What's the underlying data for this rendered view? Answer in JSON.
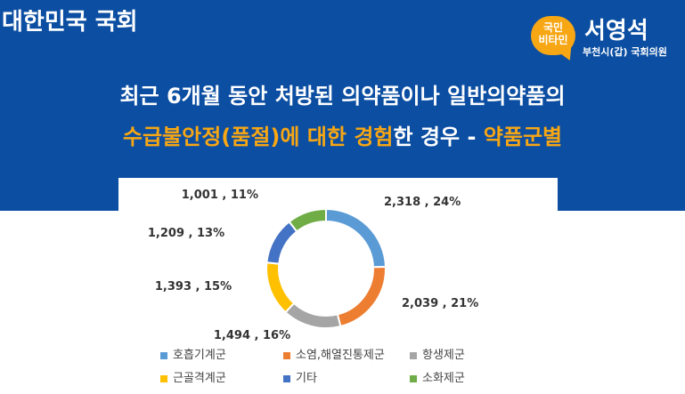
{
  "header": {
    "org_name": "대한민국 국회",
    "badge_line1": "국민",
    "badge_line2": "비타민",
    "member_name": "서영석",
    "member_district": "부천시(갑) 국회의원"
  },
  "title": {
    "line1": "최근 6개월 동안 처방된 의약품이나 일반의약품의",
    "line2_part1": "수급불안정(품절)에 대한 경험",
    "line2_part2": "한 경우 - ",
    "line2_part3": "약품군별"
  },
  "colors": {
    "banner": "#0b4ea2",
    "accent": "#f7a614"
  },
  "chart_data": {
    "type": "pie",
    "style": "donut",
    "slices": [
      {
        "label": "호흡기계군",
        "value": 2318,
        "percent": 24,
        "color": "#5b9bd5",
        "text": "2,318 , 24%"
      },
      {
        "label": "소염,해열진통제군",
        "value": 2039,
        "percent": 21,
        "color": "#ed7d31",
        "text": "2,039 , 21%"
      },
      {
        "label": "항생제군",
        "value": 1494,
        "percent": 16,
        "color": "#a5a5a5",
        "text": "1,494 , 16%"
      },
      {
        "label": "근골격계군",
        "value": 1393,
        "percent": 15,
        "color": "#ffc000",
        "text": "1,393 , 15%"
      },
      {
        "label": "기타",
        "value": 1209,
        "percent": 13,
        "color": "#4472c4",
        "text": "1,209 , 13%"
      },
      {
        "label": "소화제군",
        "value": 1001,
        "percent": 11,
        "color": "#70ad47",
        "text": "1,001 , 11%"
      }
    ],
    "legend_position": "bottom"
  }
}
